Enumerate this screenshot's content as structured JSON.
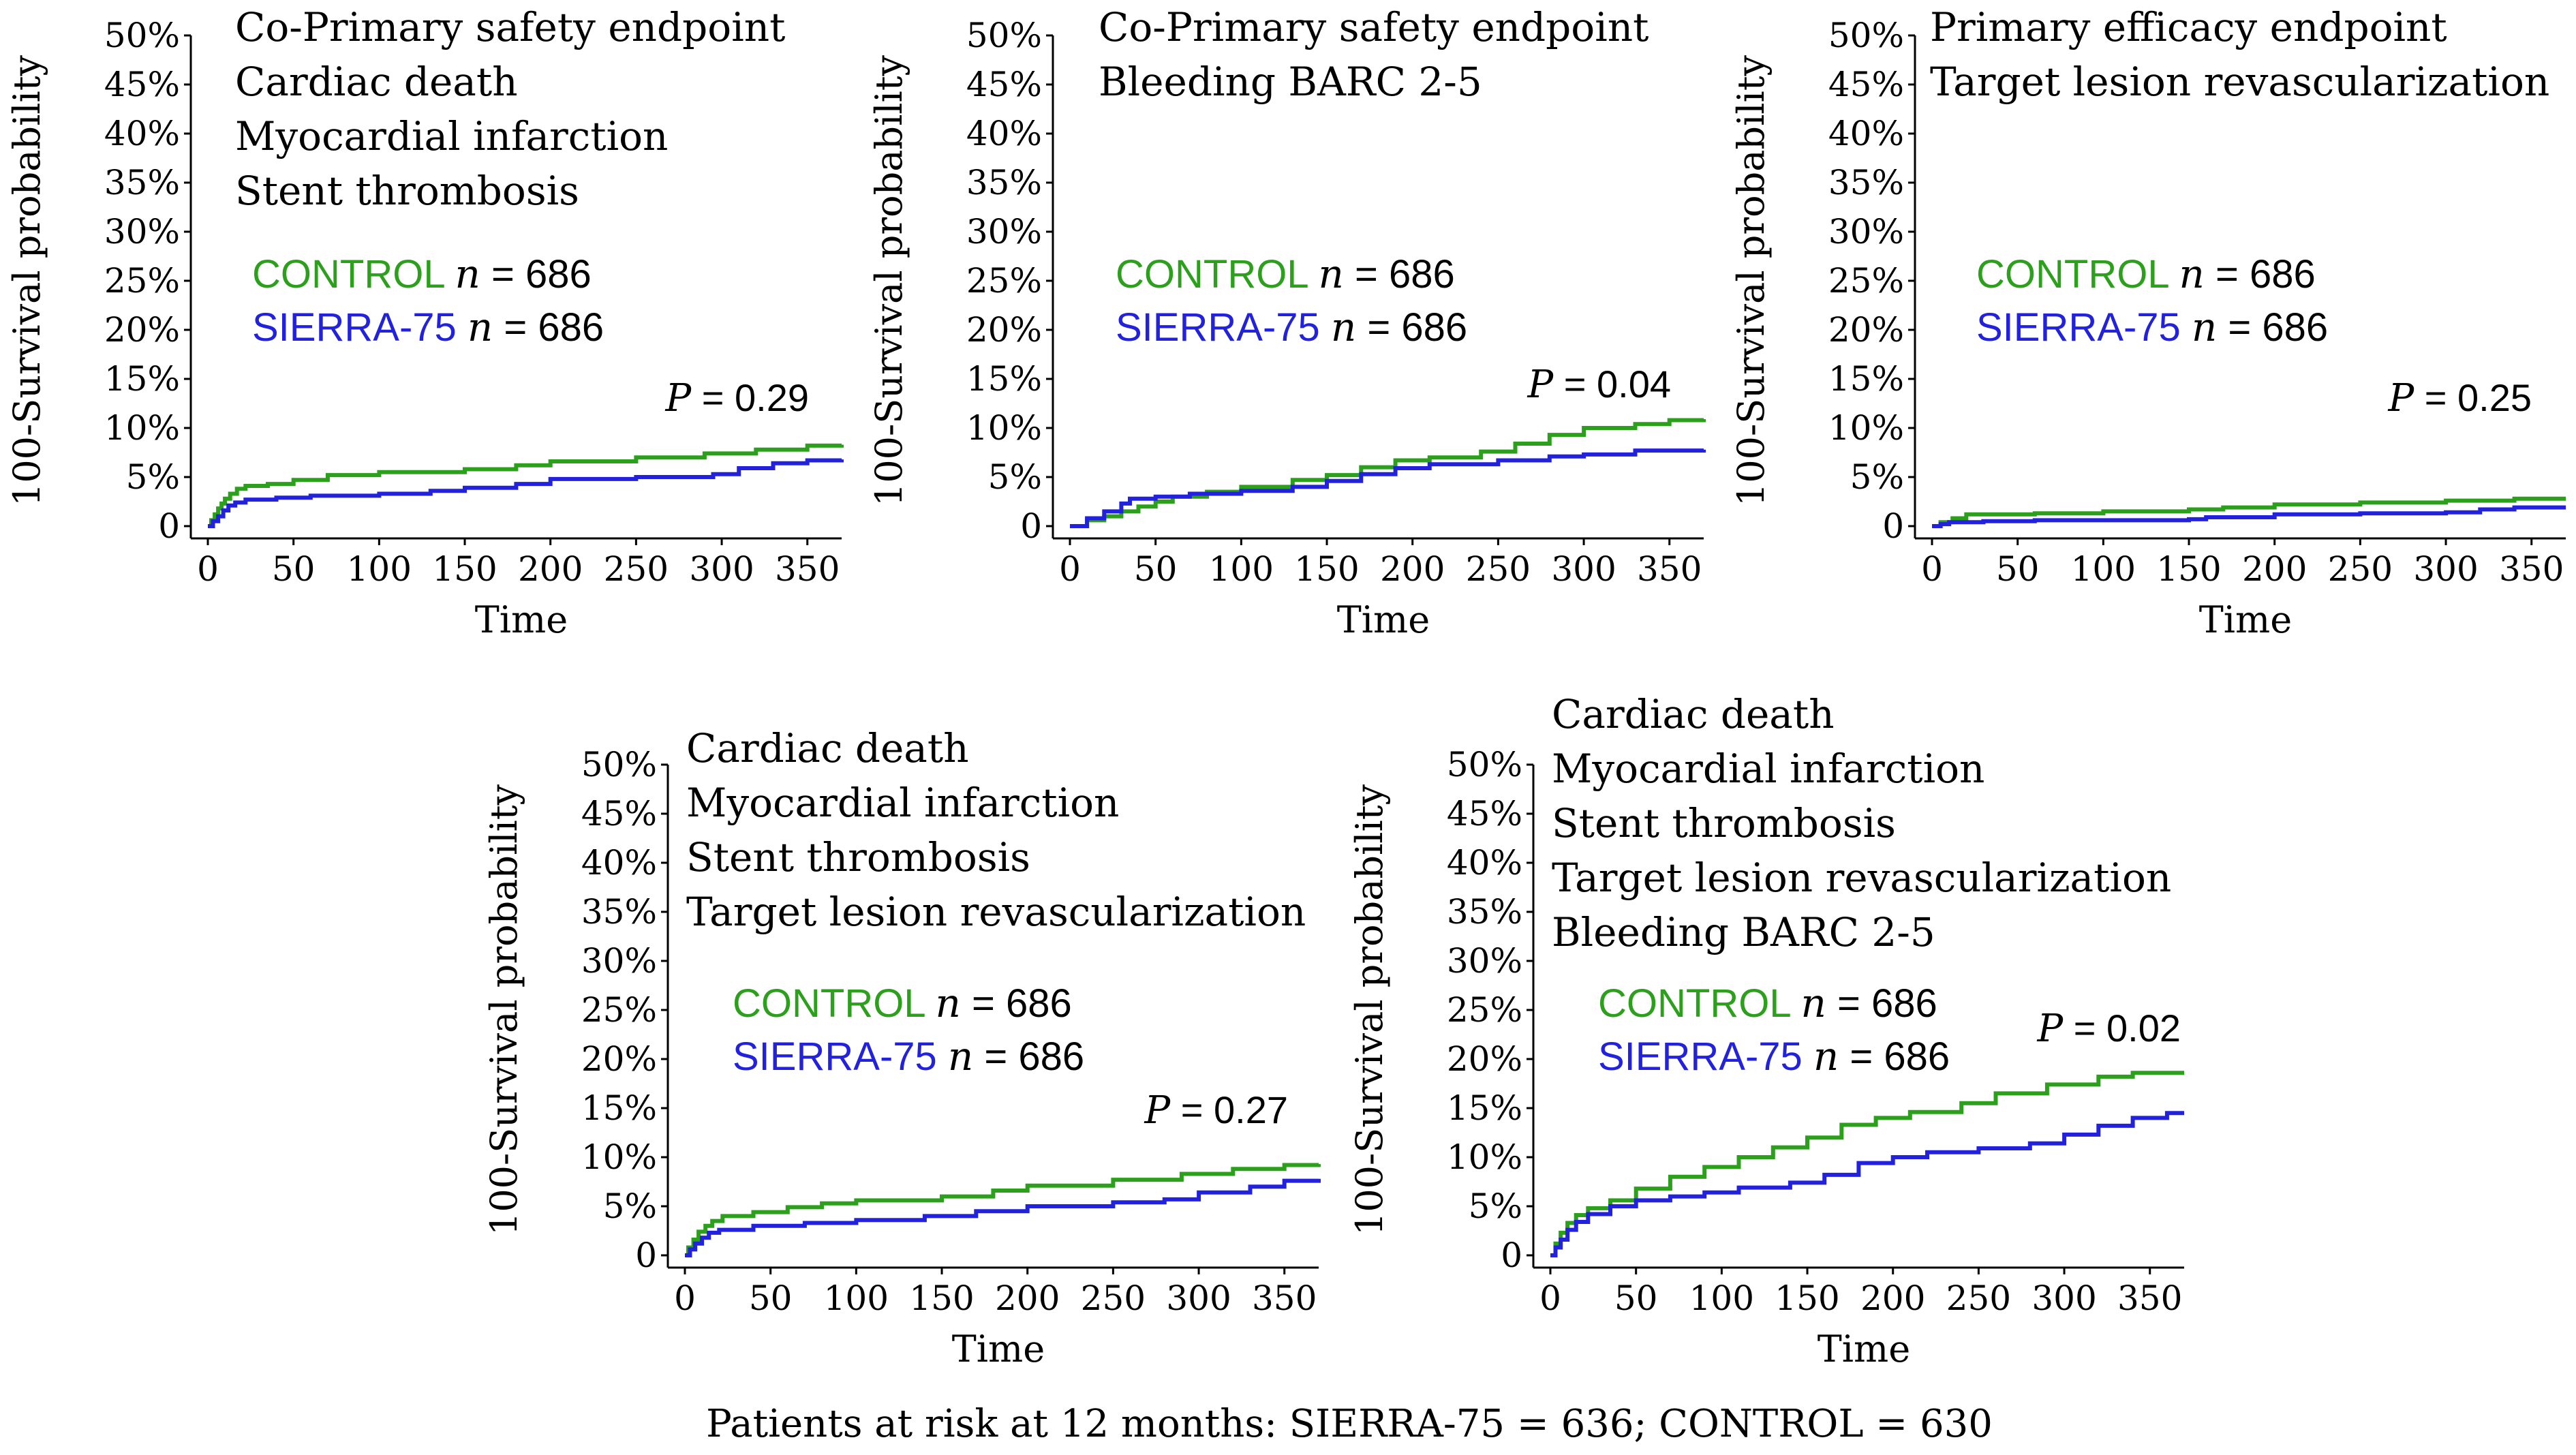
{
  "colors": {
    "control": "#2ca01c",
    "sierra": "#2222dd",
    "axis": "#000000"
  },
  "footer": "Patients at risk at 12 months: SIERRA-75 = 636; CONTROL = 630",
  "chart_data": [
    {
      "type": "line",
      "step": true,
      "title_lines": [
        "Co-Primary safety endpoint",
        "Cardiac death",
        "Myocardial infarction",
        "Stent thrombosis"
      ],
      "xlabel": "Time",
      "ylabel": "100-Survival probability",
      "xlim": [
        0,
        370
      ],
      "ylim": [
        0,
        50
      ],
      "xticks": [
        0,
        50,
        100,
        150,
        200,
        250,
        300,
        350
      ],
      "yticks": [
        0,
        5,
        10,
        15,
        20,
        25,
        30,
        35,
        40,
        45,
        50
      ],
      "ytick_labels": [
        "0",
        "5%",
        "10%",
        "15%",
        "20%",
        "25%",
        "30%",
        "35%",
        "40%",
        "45%",
        "50%"
      ],
      "p_italic": "P",
      "p_value": " = 0.29",
      "series": [
        {
          "name": "CONTROL",
          "n_italic": "n",
          "n_text": " = 686",
          "color": "#2ca01c",
          "points": [
            [
              0,
              0
            ],
            [
              2,
              0.6
            ],
            [
              4,
              1.2
            ],
            [
              6,
              1.8
            ],
            [
              8,
              2.3
            ],
            [
              10,
              2.8
            ],
            [
              13,
              3.3
            ],
            [
              17,
              3.8
            ],
            [
              22,
              4.1
            ],
            [
              35,
              4.3
            ],
            [
              50,
              4.7
            ],
            [
              70,
              5.2
            ],
            [
              100,
              5.5
            ],
            [
              150,
              5.8
            ],
            [
              180,
              6.2
            ],
            [
              200,
              6.6
            ],
            [
              250,
              7.0
            ],
            [
              290,
              7.4
            ],
            [
              320,
              7.8
            ],
            [
              350,
              8.2
            ],
            [
              370,
              8.3
            ]
          ]
        },
        {
          "name": "SIERRA-75",
          "n_italic": "n",
          "n_text": " = 686",
          "color": "#2222dd",
          "points": [
            [
              0,
              0
            ],
            [
              3,
              0.5
            ],
            [
              6,
              1.0
            ],
            [
              9,
              1.6
            ],
            [
              12,
              2.1
            ],
            [
              16,
              2.4
            ],
            [
              22,
              2.7
            ],
            [
              40,
              2.9
            ],
            [
              60,
              3.1
            ],
            [
              100,
              3.3
            ],
            [
              130,
              3.6
            ],
            [
              150,
              3.9
            ],
            [
              180,
              4.3
            ],
            [
              200,
              4.8
            ],
            [
              250,
              5.0
            ],
            [
              295,
              5.3
            ],
            [
              310,
              5.9
            ],
            [
              330,
              6.4
            ],
            [
              350,
              6.7
            ],
            [
              370,
              6.8
            ]
          ]
        }
      ]
    },
    {
      "type": "line",
      "step": true,
      "title_lines": [
        "Co-Primary safety endpoint",
        "Bleeding BARC 2-5"
      ],
      "xlabel": "Time",
      "ylabel": "100-Survival probability",
      "xlim": [
        0,
        370
      ],
      "ylim": [
        0,
        50
      ],
      "xticks": [
        0,
        50,
        100,
        150,
        200,
        250,
        300,
        350
      ],
      "yticks": [
        0,
        5,
        10,
        15,
        20,
        25,
        30,
        35,
        40,
        45,
        50
      ],
      "ytick_labels": [
        "0",
        "5%",
        "10%",
        "15%",
        "20%",
        "25%",
        "30%",
        "35%",
        "40%",
        "45%",
        "50%"
      ],
      "p_italic": "P",
      "p_value": " = 0.04",
      "series": [
        {
          "name": "CONTROL",
          "n_italic": "n",
          "n_text": " = 686",
          "color": "#2ca01c",
          "points": [
            [
              0,
              0
            ],
            [
              10,
              0.6
            ],
            [
              20,
              1.0
            ],
            [
              30,
              1.5
            ],
            [
              40,
              2.0
            ],
            [
              50,
              2.5
            ],
            [
              60,
              3.0
            ],
            [
              80,
              3.5
            ],
            [
              100,
              4.0
            ],
            [
              130,
              4.7
            ],
            [
              150,
              5.2
            ],
            [
              170,
              6.0
            ],
            [
              190,
              6.7
            ],
            [
              210,
              7.0
            ],
            [
              240,
              7.6
            ],
            [
              260,
              8.4
            ],
            [
              280,
              9.3
            ],
            [
              300,
              10.0
            ],
            [
              330,
              10.4
            ],
            [
              350,
              10.8
            ],
            [
              370,
              10.9
            ]
          ]
        },
        {
          "name": "SIERRA-75",
          "n_italic": "n",
          "n_text": " = 686",
          "color": "#2222dd",
          "points": [
            [
              0,
              0
            ],
            [
              10,
              0.8
            ],
            [
              20,
              1.5
            ],
            [
              30,
              2.3
            ],
            [
              35,
              2.8
            ],
            [
              50,
              3.0
            ],
            [
              70,
              3.3
            ],
            [
              100,
              3.6
            ],
            [
              130,
              4.0
            ],
            [
              150,
              4.6
            ],
            [
              170,
              5.3
            ],
            [
              190,
              5.9
            ],
            [
              210,
              6.3
            ],
            [
              250,
              6.7
            ],
            [
              280,
              7.1
            ],
            [
              300,
              7.3
            ],
            [
              330,
              7.7
            ],
            [
              370,
              7.8
            ]
          ]
        }
      ]
    },
    {
      "type": "line",
      "step": true,
      "title_lines": [
        "Primary efficacy endpoint",
        "Target lesion revascularization"
      ],
      "xlabel": "Time",
      "ylabel": "100-Survival probability",
      "xlim": [
        0,
        370
      ],
      "ylim": [
        0,
        50
      ],
      "xticks": [
        0,
        50,
        100,
        150,
        200,
        250,
        300,
        350
      ],
      "yticks": [
        0,
        5,
        10,
        15,
        20,
        25,
        30,
        35,
        40,
        45,
        50
      ],
      "ytick_labels": [
        "0",
        "5%",
        "10%",
        "15%",
        "20%",
        "25%",
        "30%",
        "35%",
        "40%",
        "45%",
        "50%"
      ],
      "p_italic": "P",
      "p_value": " = 0.25",
      "series": [
        {
          "name": "CONTROL",
          "n_italic": "n",
          "n_text": " = 686",
          "color": "#2ca01c",
          "points": [
            [
              0,
              0
            ],
            [
              5,
              0.4
            ],
            [
              12,
              0.8
            ],
            [
              20,
              1.2
            ],
            [
              60,
              1.3
            ],
            [
              100,
              1.5
            ],
            [
              150,
              1.7
            ],
            [
              170,
              1.9
            ],
            [
              200,
              2.2
            ],
            [
              250,
              2.4
            ],
            [
              300,
              2.6
            ],
            [
              340,
              2.8
            ],
            [
              370,
              2.8
            ]
          ]
        },
        {
          "name": "SIERRA-75",
          "n_italic": "n",
          "n_text": " = 686",
          "color": "#2222dd",
          "points": [
            [
              0,
              0
            ],
            [
              5,
              0.2
            ],
            [
              10,
              0.4
            ],
            [
              30,
              0.5
            ],
            [
              60,
              0.6
            ],
            [
              100,
              0.6
            ],
            [
              150,
              0.7
            ],
            [
              160,
              0.9
            ],
            [
              200,
              1.2
            ],
            [
              250,
              1.3
            ],
            [
              300,
              1.4
            ],
            [
              320,
              1.7
            ],
            [
              340,
              1.9
            ],
            [
              370,
              1.9
            ]
          ]
        }
      ]
    },
    {
      "type": "line",
      "step": true,
      "title_lines": [
        "Cardiac death",
        "Myocardial infarction",
        "Stent thrombosis",
        "Target lesion revascularization"
      ],
      "xlabel": "Time",
      "ylabel": "100-Survival probability",
      "xlim": [
        0,
        370
      ],
      "ylim": [
        0,
        50
      ],
      "xticks": [
        0,
        50,
        100,
        150,
        200,
        250,
        300,
        350
      ],
      "yticks": [
        0,
        5,
        10,
        15,
        20,
        25,
        30,
        35,
        40,
        45,
        50
      ],
      "ytick_labels": [
        "0",
        "5%",
        "10%",
        "15%",
        "20%",
        "25%",
        "30%",
        "35%",
        "40%",
        "45%",
        "50%"
      ],
      "p_italic": "P",
      "p_value": " = 0.27",
      "series": [
        {
          "name": "CONTROL",
          "n_italic": "n",
          "n_text": " = 686",
          "color": "#2ca01c",
          "points": [
            [
              0,
              0
            ],
            [
              2,
              0.8
            ],
            [
              5,
              1.6
            ],
            [
              8,
              2.4
            ],
            [
              12,
              3.0
            ],
            [
              16,
              3.5
            ],
            [
              22,
              4.0
            ],
            [
              40,
              4.4
            ],
            [
              60,
              4.9
            ],
            [
              80,
              5.3
            ],
            [
              100,
              5.6
            ],
            [
              150,
              6.0
            ],
            [
              180,
              6.6
            ],
            [
              200,
              7.1
            ],
            [
              250,
              7.7
            ],
            [
              290,
              8.3
            ],
            [
              320,
              8.8
            ],
            [
              350,
              9.2
            ],
            [
              370,
              9.3
            ]
          ]
        },
        {
          "name": "SIERRA-75",
          "n_italic": "n",
          "n_text": " = 686",
          "color": "#2222dd",
          "points": [
            [
              0,
              0
            ],
            [
              3,
              0.6
            ],
            [
              6,
              1.2
            ],
            [
              10,
              1.8
            ],
            [
              14,
              2.3
            ],
            [
              20,
              2.6
            ],
            [
              40,
              3.0
            ],
            [
              70,
              3.3
            ],
            [
              100,
              3.6
            ],
            [
              140,
              4.0
            ],
            [
              170,
              4.5
            ],
            [
              200,
              5.0
            ],
            [
              250,
              5.4
            ],
            [
              280,
              5.7
            ],
            [
              300,
              6.4
            ],
            [
              330,
              7.0
            ],
            [
              350,
              7.6
            ],
            [
              370,
              7.8
            ]
          ]
        }
      ]
    },
    {
      "type": "line",
      "step": true,
      "title_lines": [
        "Cardiac death",
        "Myocardial infarction",
        "Stent thrombosis",
        "Target lesion revascularization",
        "Bleeding BARC 2-5"
      ],
      "xlabel": "Time",
      "ylabel": "100-Survival probability",
      "xlim": [
        0,
        370
      ],
      "ylim": [
        0,
        50
      ],
      "xticks": [
        0,
        50,
        100,
        150,
        200,
        250,
        300,
        350
      ],
      "yticks": [
        0,
        5,
        10,
        15,
        20,
        25,
        30,
        35,
        40,
        45,
        50
      ],
      "ytick_labels": [
        "0",
        "5%",
        "10%",
        "15%",
        "20%",
        "25%",
        "30%",
        "35%",
        "40%",
        "45%",
        "50%"
      ],
      "p_italic": "P",
      "p_value": " = 0.02",
      "series": [
        {
          "name": "CONTROL",
          "n_italic": "n",
          "n_text": " = 686",
          "color": "#2ca01c",
          "points": [
            [
              0,
              0
            ],
            [
              3,
              1.2
            ],
            [
              6,
              2.3
            ],
            [
              10,
              3.3
            ],
            [
              15,
              4.1
            ],
            [
              22,
              4.8
            ],
            [
              35,
              5.6
            ],
            [
              50,
              6.8
            ],
            [
              70,
              8.0
            ],
            [
              90,
              9.0
            ],
            [
              110,
              10.0
            ],
            [
              130,
              11.0
            ],
            [
              150,
              12.0
            ],
            [
              170,
              13.3
            ],
            [
              190,
              14.0
            ],
            [
              210,
              14.6
            ],
            [
              240,
              15.5
            ],
            [
              260,
              16.5
            ],
            [
              290,
              17.4
            ],
            [
              320,
              18.2
            ],
            [
              340,
              18.6
            ],
            [
              370,
              18.6
            ]
          ]
        },
        {
          "name": "SIERRA-75",
          "n_italic": "n",
          "n_text": " = 686",
          "color": "#2222dd",
          "points": [
            [
              0,
              0
            ],
            [
              3,
              0.8
            ],
            [
              6,
              1.6
            ],
            [
              10,
              2.6
            ],
            [
              15,
              3.4
            ],
            [
              22,
              4.2
            ],
            [
              35,
              5.0
            ],
            [
              50,
              5.6
            ],
            [
              70,
              6.0
            ],
            [
              90,
              6.4
            ],
            [
              110,
              6.9
            ],
            [
              140,
              7.4
            ],
            [
              160,
              8.2
            ],
            [
              180,
              9.4
            ],
            [
              200,
              10.0
            ],
            [
              220,
              10.5
            ],
            [
              250,
              10.9
            ],
            [
              280,
              11.4
            ],
            [
              300,
              12.3
            ],
            [
              320,
              13.2
            ],
            [
              340,
              14.0
            ],
            [
              360,
              14.5
            ],
            [
              370,
              14.5
            ]
          ]
        }
      ]
    }
  ]
}
